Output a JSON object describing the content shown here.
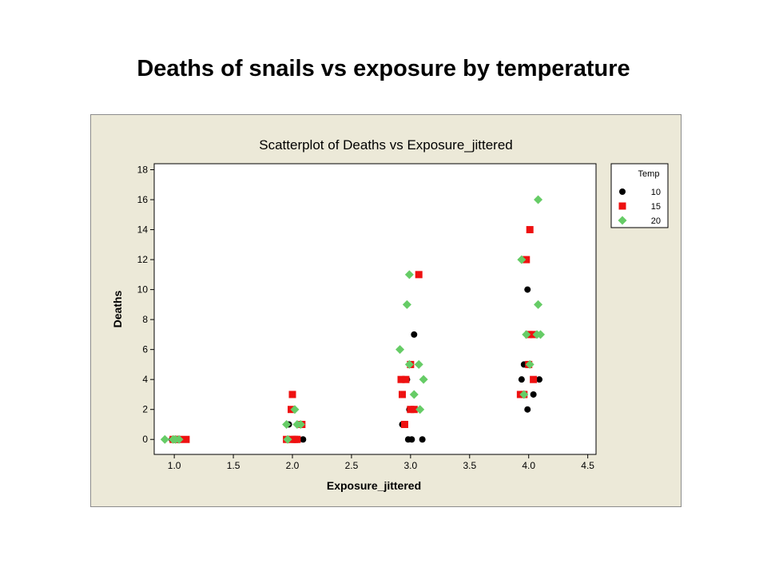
{
  "slide": {
    "title": "Deaths of snails vs exposure by temperature"
  },
  "colors": {
    "background": "#ece9d8",
    "plot_area": "#ffffff",
    "temp_10": "#000000",
    "temp_15": "#ee1111",
    "temp_20": "#66cc66"
  },
  "chart_data": {
    "type": "scatter",
    "title": "Scatterplot of Deaths vs Exposure_jittered",
    "xlabel": "Exposure_jittered",
    "ylabel": "Deaths",
    "xlim": [
      0.83,
      4.57
    ],
    "ylim": [
      -1.0,
      18.4
    ],
    "x_ticks": [
      "1.0",
      "1.5",
      "2.0",
      "2.5",
      "3.0",
      "3.5",
      "4.0",
      "4.5"
    ],
    "y_ticks": [
      "0",
      "2",
      "4",
      "6",
      "8",
      "10",
      "12",
      "14",
      "16",
      "18"
    ],
    "grid": false,
    "legend": {
      "title": "Temp",
      "position": "right"
    },
    "series": [
      {
        "name": "10",
        "marker": "circle",
        "color": "#000000",
        "points": [
          [
            0.98,
            0
          ],
          [
            1.01,
            0
          ],
          [
            1.03,
            0
          ],
          [
            1.05,
            0
          ],
          [
            1.96,
            0
          ],
          [
            1.98,
            0
          ],
          [
            2.03,
            0
          ],
          [
            2.09,
            0
          ],
          [
            1.97,
            1
          ],
          [
            2.07,
            1
          ],
          [
            2.98,
            0
          ],
          [
            3.01,
            0
          ],
          [
            3.1,
            0
          ],
          [
            2.93,
            1
          ],
          [
            2.99,
            2
          ],
          [
            3.03,
            2
          ],
          [
            2.97,
            4
          ],
          [
            3.0,
            5
          ],
          [
            3.03,
            7
          ],
          [
            3.99,
            2
          ],
          [
            4.04,
            3
          ],
          [
            3.94,
            4
          ],
          [
            4.09,
            4
          ],
          [
            3.96,
            5
          ],
          [
            4.0,
            7
          ],
          [
            3.99,
            10
          ]
        ]
      },
      {
        "name": "15",
        "marker": "square",
        "color": "#ee1111",
        "points": [
          [
            0.99,
            0
          ],
          [
            1.02,
            0
          ],
          [
            1.04,
            0
          ],
          [
            1.1,
            0
          ],
          [
            1.95,
            0
          ],
          [
            2.0,
            0
          ],
          [
            2.02,
            0
          ],
          [
            2.04,
            0
          ],
          [
            2.08,
            1
          ],
          [
            1.99,
            2
          ],
          [
            2.0,
            3
          ],
          [
            2.95,
            1
          ],
          [
            3.0,
            2
          ],
          [
            3.03,
            2
          ],
          [
            2.93,
            3
          ],
          [
            2.92,
            4
          ],
          [
            2.96,
            4
          ],
          [
            3.0,
            5
          ],
          [
            3.07,
            11
          ],
          [
            3.93,
            3
          ],
          [
            3.96,
            3
          ],
          [
            4.04,
            4
          ],
          [
            4.0,
            5
          ],
          [
            4.0,
            7
          ],
          [
            4.04,
            7
          ],
          [
            3.98,
            12
          ],
          [
            4.01,
            14
          ]
        ]
      },
      {
        "name": "20",
        "marker": "diamond",
        "color": "#66cc66",
        "points": [
          [
            0.92,
            0
          ],
          [
            0.99,
            0
          ],
          [
            1.01,
            0
          ],
          [
            1.04,
            0
          ],
          [
            1.96,
            0
          ],
          [
            1.95,
            1
          ],
          [
            2.04,
            1
          ],
          [
            2.07,
            1
          ],
          [
            2.02,
            2
          ],
          [
            3.08,
            2
          ],
          [
            3.03,
            3
          ],
          [
            3.11,
            4
          ],
          [
            3.07,
            5
          ],
          [
            2.99,
            5
          ],
          [
            2.91,
            6
          ],
          [
            2.97,
            9
          ],
          [
            2.99,
            11
          ],
          [
            3.96,
            3
          ],
          [
            4.01,
            5
          ],
          [
            3.98,
            7
          ],
          [
            4.1,
            7
          ],
          [
            4.07,
            7
          ],
          [
            4.08,
            9
          ],
          [
            3.94,
            12
          ],
          [
            4.08,
            16
          ]
        ]
      }
    ]
  }
}
